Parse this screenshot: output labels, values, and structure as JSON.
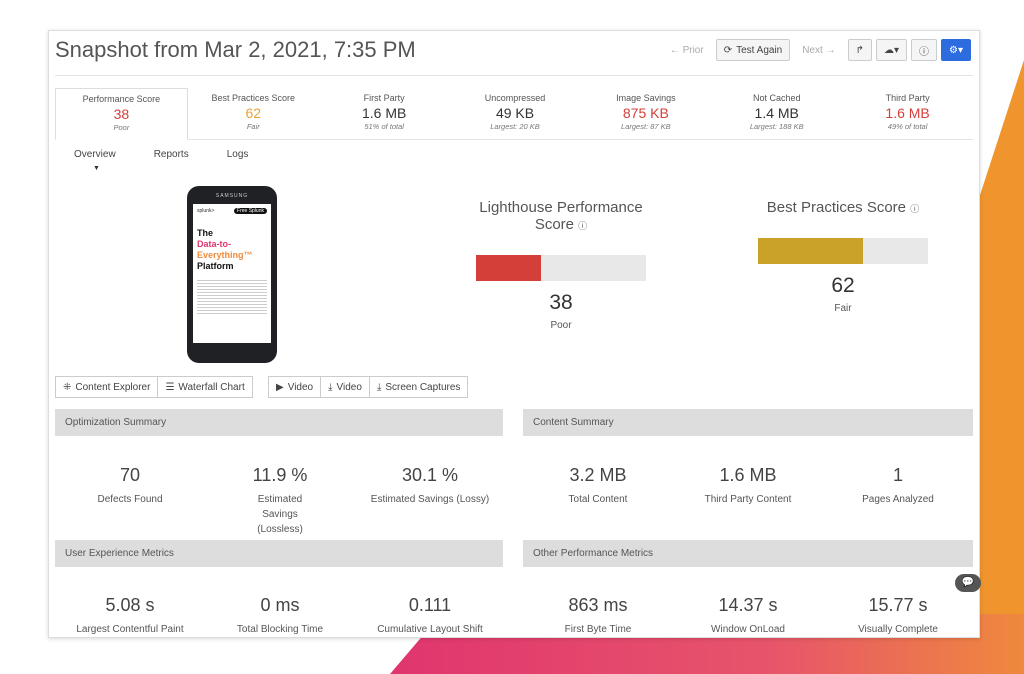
{
  "title": "Snapshot from Mar 2, 2021, 7:35 PM",
  "toolbar": {
    "prior": "← Prior",
    "test_again": "Test Again",
    "next": "Next →"
  },
  "stats": [
    {
      "label": "Performance Score",
      "value": "38",
      "sub": "Poor"
    },
    {
      "label": "Best Practices Score",
      "value": "62",
      "sub": "Fair"
    },
    {
      "label": "First Party",
      "value": "1.6 MB",
      "sub": "51% of total"
    },
    {
      "label": "Uncompressed",
      "value": "49 KB",
      "sub": "Largest: 20 KB"
    },
    {
      "label": "Image Savings",
      "value": "875 KB",
      "sub": "Largest: 87 KB"
    },
    {
      "label": "Not Cached",
      "value": "1.4 MB",
      "sub": "Largest: 188 KB"
    },
    {
      "label": "Third Party",
      "value": "1.6 MB",
      "sub": "49% of total"
    }
  ],
  "tabs": [
    "Overview",
    "Reports",
    "Logs"
  ],
  "phone": {
    "brand": "SAMSUNG",
    "logo": "splunk>",
    "cta": "Free Splunk",
    "h1": "The",
    "h2": "Data-to-",
    "h3": "Everything™",
    "h4": "Platform"
  },
  "lighthouse": {
    "title": "Lighthouse Performance Score",
    "score": "38",
    "grade": "Poor",
    "fraction": 0.38,
    "color": "#d43f3a"
  },
  "best_practices": {
    "title": "Best Practices Score",
    "score": "62",
    "grade": "Fair",
    "fraction": 0.62,
    "color": "#c9a227"
  },
  "buttons": {
    "content_explorer": "Content Explorer",
    "waterfall": "Waterfall Chart",
    "video1": "Video",
    "video2": "Video",
    "screen_captures": "Screen Captures"
  },
  "optimization": {
    "title": "Optimization Summary",
    "items": [
      {
        "value": "70",
        "label": "Defects Found"
      },
      {
        "value": "11.9 %",
        "label": "Estimated Savings (Lossless)"
      },
      {
        "value": "30.1 %",
        "label": "Estimated Savings (Lossy)"
      }
    ]
  },
  "content": {
    "title": "Content Summary",
    "items": [
      {
        "value": "3.2 MB",
        "label": "Total Content"
      },
      {
        "value": "1.6 MB",
        "label": "Third Party Content"
      },
      {
        "value": "1",
        "label": "Pages Analyzed"
      }
    ]
  },
  "ux": {
    "title": "User Experience Metrics",
    "items": [
      {
        "value": "5.08 s",
        "label": "Largest Contentful Paint"
      },
      {
        "value": "0 ms",
        "label": "Total Blocking Time"
      },
      {
        "value": "0.111",
        "label": "Cumulative Layout Shift"
      }
    ]
  },
  "other": {
    "title": "Other Performance Metrics",
    "items": [
      {
        "value": "863 ms",
        "label": "First Byte Time"
      },
      {
        "value": "14.37 s",
        "label": "Window OnLoad"
      },
      {
        "value": "15.77 s",
        "label": "Visually Complete"
      }
    ]
  }
}
